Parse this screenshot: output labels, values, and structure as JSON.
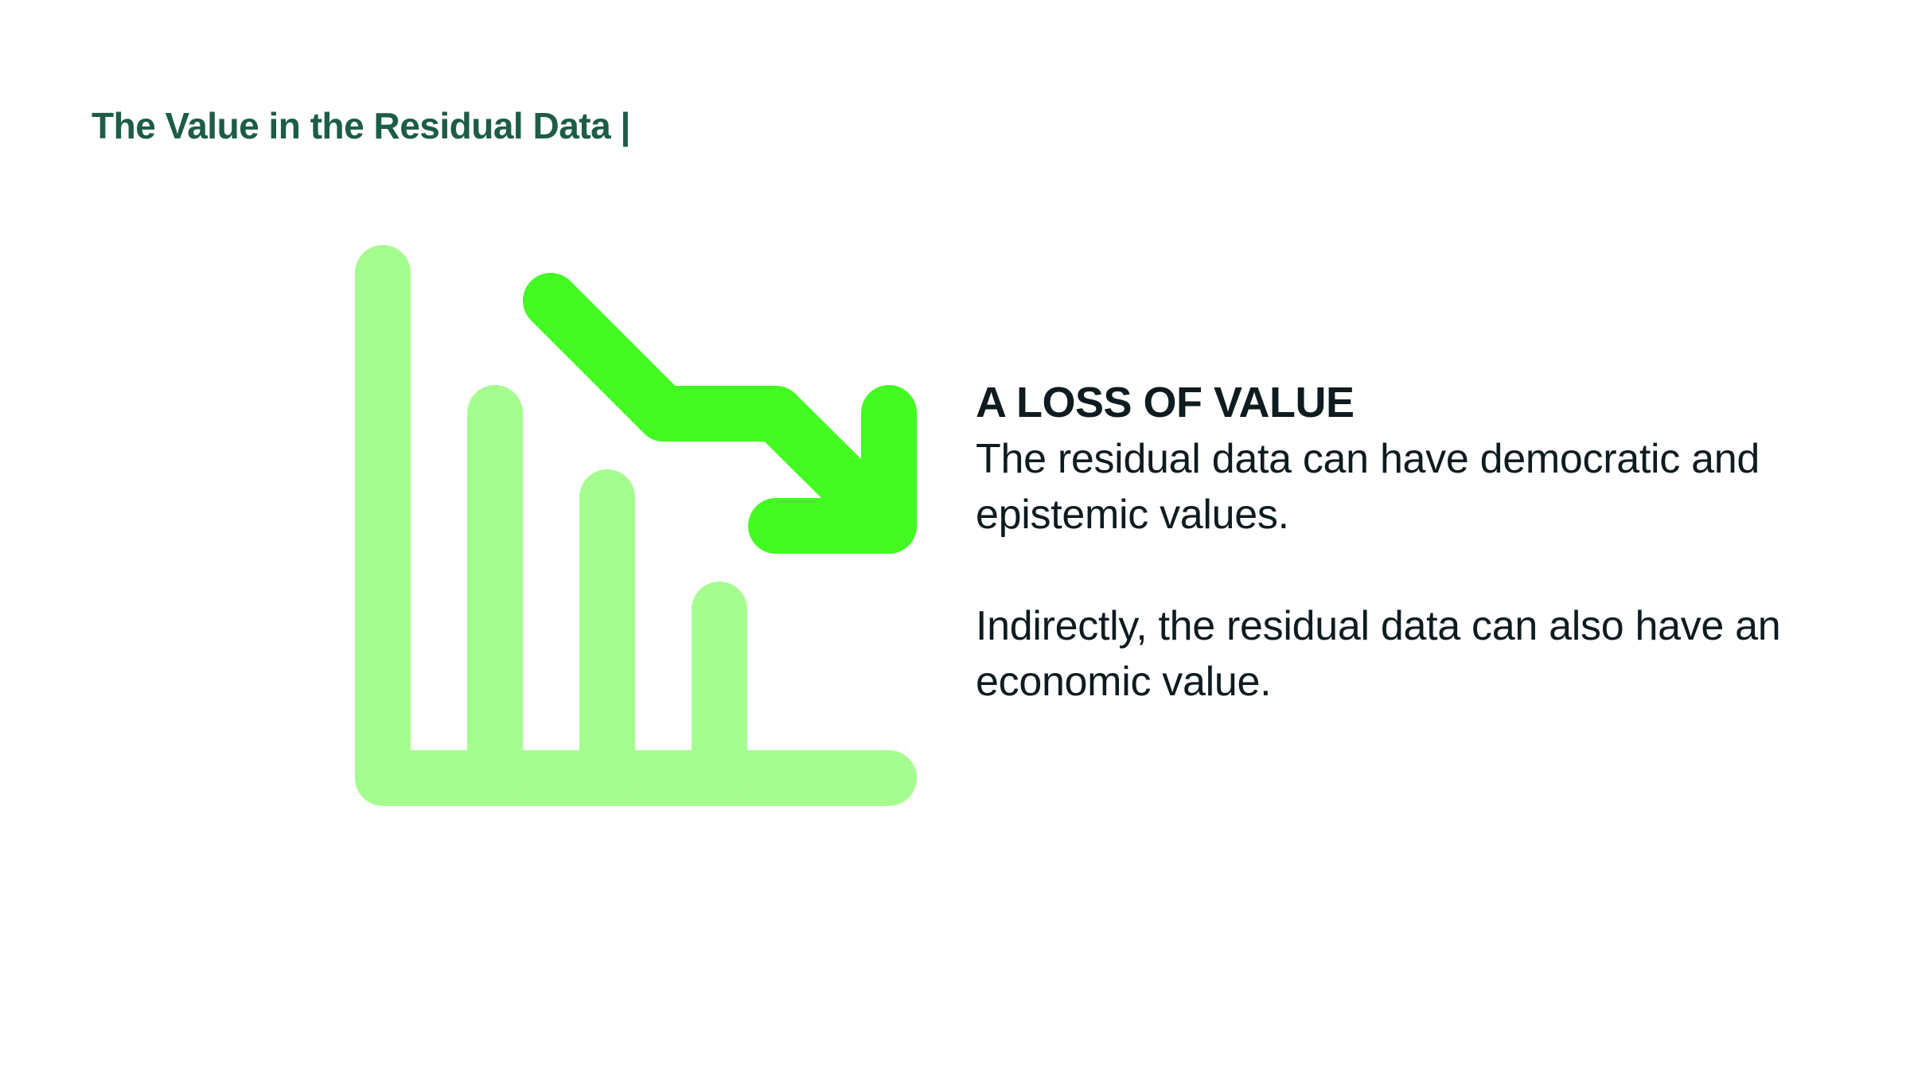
{
  "slide": {
    "title": "The Value in the Residual Data |",
    "heading": "A LOSS OF VALUE",
    "paragraphs": [
      "The residual data can have democratic and epistemic values.",
      "Indirectly, the residual data can also have an economic value."
    ]
  },
  "icon": {
    "name": "declining-bar-chart-with-down-arrow-icon",
    "bars_color": "#a6fd8f",
    "arrow_color": "#44fa23"
  },
  "colors": {
    "title": "#1d5c45",
    "body_text": "#0e1b1f",
    "background": "#ffffff"
  }
}
